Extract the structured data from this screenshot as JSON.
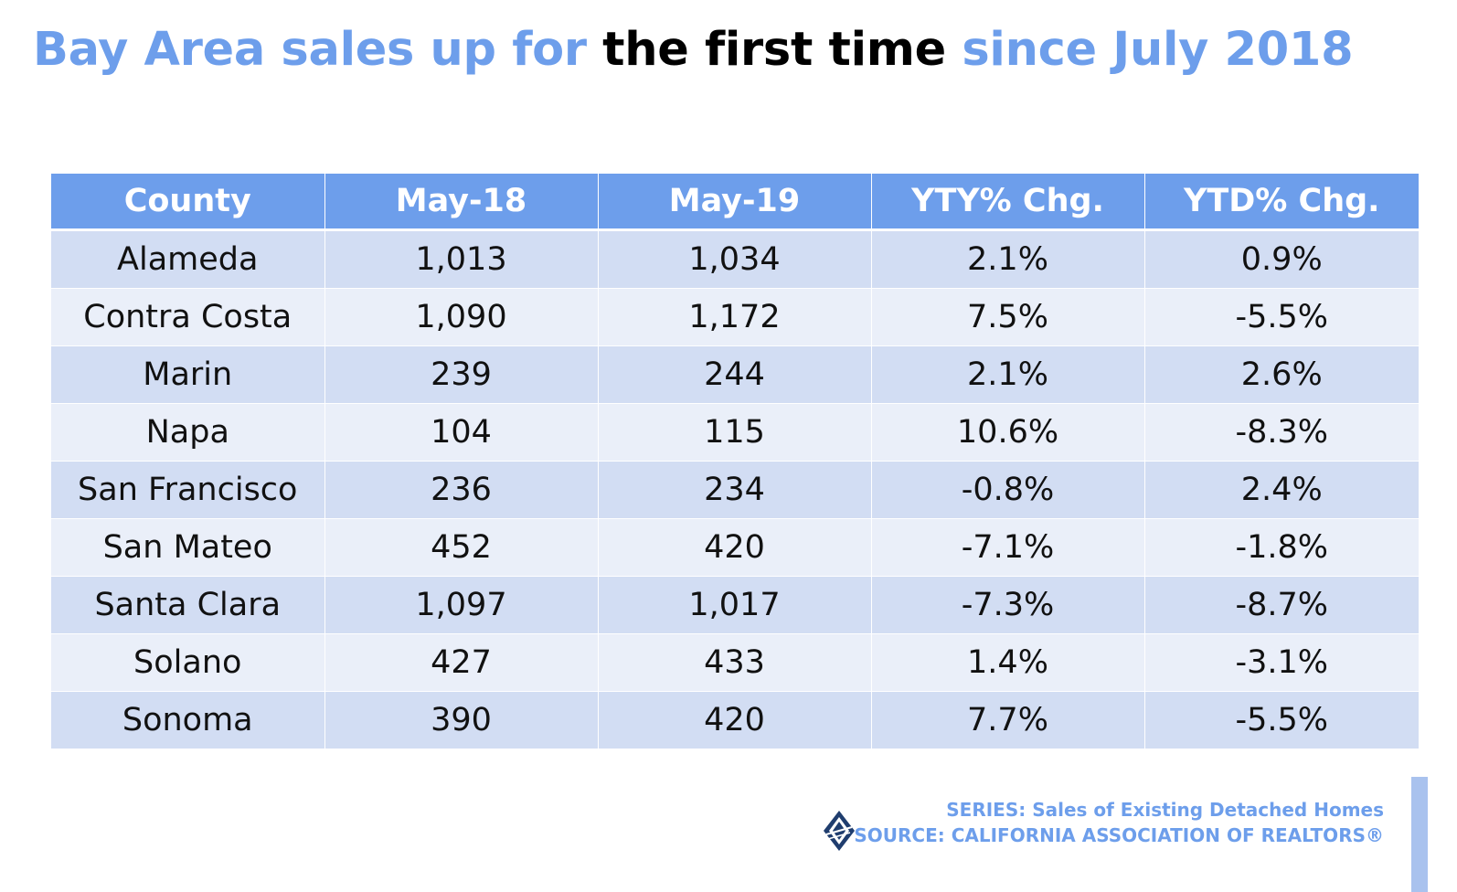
{
  "title": {
    "part1": "Bay Area sales up for ",
    "part2": "the first time",
    "part3": " since July 2018"
  },
  "colors": {
    "accent": "#6d9eeb",
    "row_odd": "#d2ddf3",
    "row_even": "#eaeff9"
  },
  "chart_data": {
    "type": "table",
    "columns": [
      "County",
      "May-18",
      "May-19",
      "YTY% Chg.",
      "YTD% Chg."
    ],
    "rows": [
      [
        "Alameda",
        "1,013",
        "1,034",
        "2.1%",
        "0.9%"
      ],
      [
        "Contra Costa",
        "1,090",
        "1,172",
        "7.5%",
        "-5.5%"
      ],
      [
        "Marin",
        "239",
        "244",
        "2.1%",
        "2.6%"
      ],
      [
        "Napa",
        "104",
        "115",
        "10.6%",
        "-8.3%"
      ],
      [
        "San Francisco",
        "236",
        "234",
        "-0.8%",
        "2.4%"
      ],
      [
        "San Mateo",
        "452",
        "420",
        "-7.1%",
        "-1.8%"
      ],
      [
        "Santa Clara",
        "1,097",
        "1,017",
        "-7.3%",
        "-8.7%"
      ],
      [
        "Solano",
        "427",
        "433",
        "1.4%",
        "-3.1%"
      ],
      [
        "Sonoma",
        "390",
        "420",
        "7.7%",
        "-5.5%"
      ]
    ]
  },
  "footer": {
    "series": "SERIES: Sales of Existing Detached Homes",
    "source": "SOURCE: CALIFORNIA ASSOCIATION OF REALTORS®",
    "logo_icon": "car-logo-icon"
  }
}
